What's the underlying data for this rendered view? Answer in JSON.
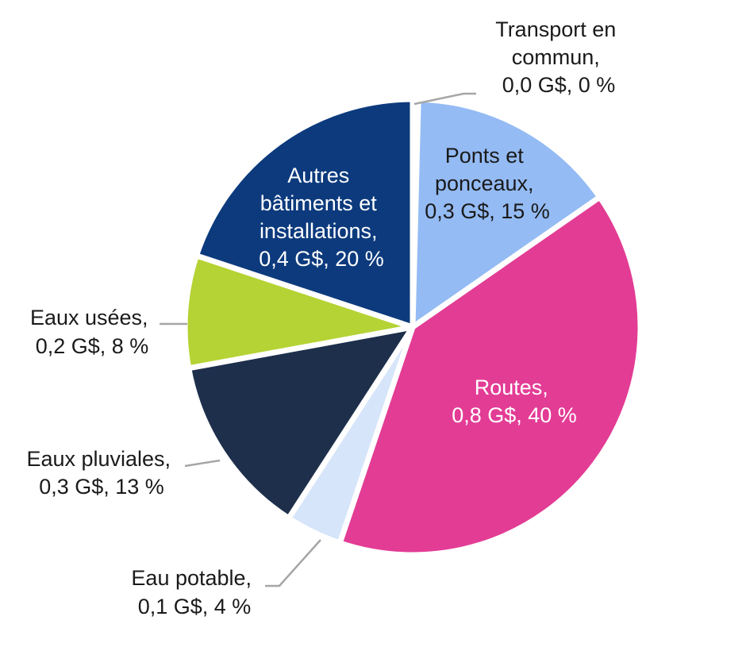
{
  "chart_data": {
    "type": "pie",
    "unit": "G$",
    "slices": [
      {
        "name": "Transport en commun",
        "label_lines": [
          "Transport en",
          "commun,",
          "0,0 G$, 0 %"
        ],
        "value": 0.0,
        "percent": 0.4,
        "color": "#7f7f7f"
      },
      {
        "name": "Ponts et ponceaux",
        "label_lines": [
          "Ponts et",
          "ponceaux,",
          "0,3 G$, 15 %"
        ],
        "value": 0.3,
        "percent": 15,
        "color": "#94bbf4"
      },
      {
        "name": "Routes",
        "label_lines": [
          "Routes,",
          "0,8 G$, 40 %"
        ],
        "value": 0.8,
        "percent": 40,
        "color": "#e33c95"
      },
      {
        "name": "Eau potable",
        "label_lines": [
          "Eau potable,",
          "0,1 G$, 4 %"
        ],
        "value": 0.1,
        "percent": 4,
        "color": "#d6e5fa"
      },
      {
        "name": "Eaux pluviales",
        "label_lines": [
          "Eaux pluviales,",
          "0,3 G$, 13 %"
        ],
        "value": 0.3,
        "percent": 13,
        "color": "#1d2f4b"
      },
      {
        "name": "Eaux usées",
        "label_lines": [
          "Eaux usées,",
          "0,2 G$, 8 %"
        ],
        "value": 0.2,
        "percent": 8,
        "color": "#b5d334"
      },
      {
        "name": "Autres bâtiments et installations",
        "label_lines": [
          "Autres",
          "bâtiments et",
          "installations,",
          "0,4 G$, 20 %"
        ],
        "value": 0.4,
        "percent": 20,
        "color": "#0c3a7d"
      }
    ]
  }
}
